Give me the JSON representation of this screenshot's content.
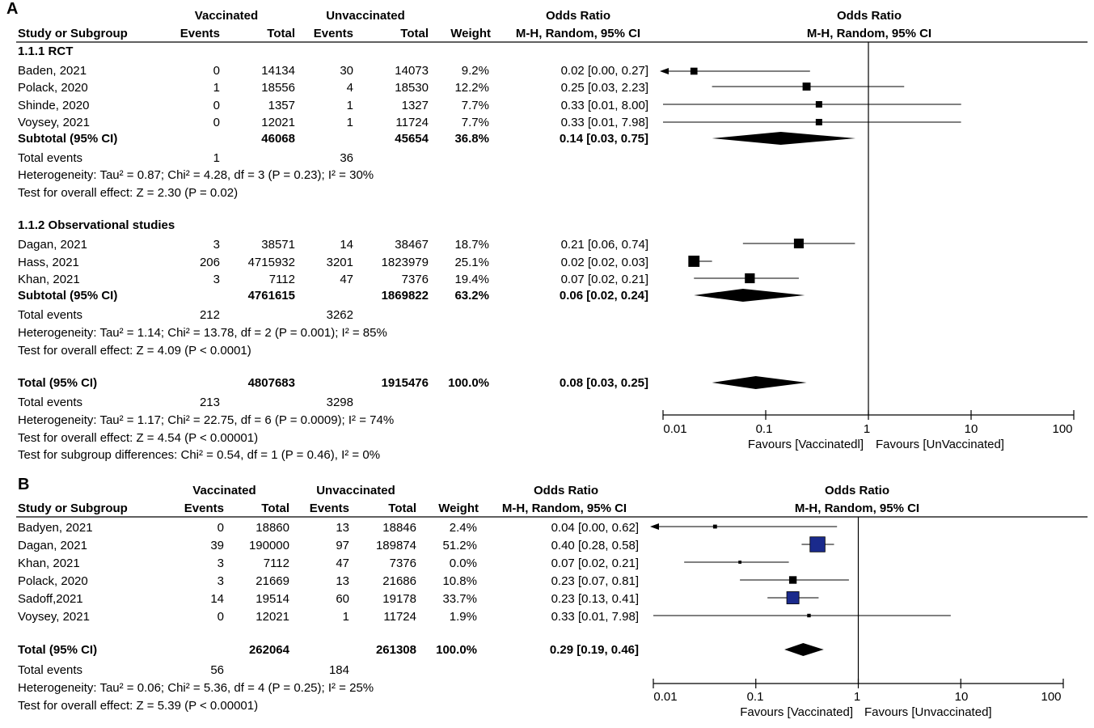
{
  "panels": [
    {
      "label": "A",
      "headers": {
        "group1": "Vaccinated",
        "group2": "Unvaccinated",
        "or_title": "Odds Ratio",
        "study": "Study or Subgroup",
        "events": "Events",
        "total": "Total",
        "weight": "Weight",
        "method": "M-H, Random, 95% CI",
        "plot_title": "Odds Ratio",
        "plot_method": "M-H, Random, 95% CI"
      },
      "subgroups": [
        {
          "title": "1.1.1 RCT",
          "studies": [
            {
              "name": "Baden, 2021",
              "ev1": "0",
              "tot1": "14134",
              "ev2": "30",
              "tot2": "14073",
              "weight": "9.2%",
              "ci": "0.02 [0.00, 0.27]"
            },
            {
              "name": "Polack, 2020",
              "ev1": "1",
              "tot1": "18556",
              "ev2": "4",
              "tot2": "18530",
              "weight": "12.2%",
              "ci": "0.25 [0.03, 2.23]"
            },
            {
              "name": "Shinde, 2020",
              "ev1": "0",
              "tot1": "1357",
              "ev2": "1",
              "tot2": "1327",
              "weight": "7.7%",
              "ci": "0.33 [0.01, 8.00]"
            },
            {
              "name": "Voysey, 2021",
              "ev1": "0",
              "tot1": "12021",
              "ev2": "1",
              "tot2": "11724",
              "weight": "7.7%",
              "ci": "0.33 [0.01, 7.98]"
            }
          ],
          "subtotal": {
            "label": "Subtotal (95% CI)",
            "tot1": "46068",
            "tot2": "45654",
            "weight": "36.8%",
            "ci": "0.14 [0.03, 0.75]"
          },
          "total_events": {
            "label": "Total events",
            "ev1": "1",
            "ev2": "36"
          },
          "heterogeneity": "Heterogeneity: Tau² = 0.87; Chi² = 4.28, df = 3 (P = 0.23); I² = 30%",
          "overall": "Test for overall effect: Z = 2.30 (P = 0.02)"
        },
        {
          "title": "1.1.2 Observational studies",
          "studies": [
            {
              "name": "Dagan, 2021",
              "ev1": "3",
              "tot1": "38571",
              "ev2": "14",
              "tot2": "38467",
              "weight": "18.7%",
              "ci": "0.21 [0.06, 0.74]"
            },
            {
              "name": "Hass, 2021",
              "ev1": "206",
              "tot1": "4715932",
              "ev2": "3201",
              "tot2": "1823979",
              "weight": "25.1%",
              "ci": "0.02 [0.02, 0.03]"
            },
            {
              "name": "Khan, 2021",
              "ev1": "3",
              "tot1": "7112",
              "ev2": "47",
              "tot2": "7376",
              "weight": "19.4%",
              "ci": "0.07 [0.02, 0.21]"
            }
          ],
          "subtotal": {
            "label": "Subtotal (95% CI)",
            "tot1": "4761615",
            "tot2": "1869822",
            "weight": "63.2%",
            "ci": "0.06 [0.02, 0.24]"
          },
          "total_events": {
            "label": "Total events",
            "ev1": "212",
            "ev2": "3262"
          },
          "heterogeneity": "Heterogeneity: Tau² = 1.14; Chi² = 13.78, df = 2 (P = 0.001); I² = 85%",
          "overall": "Test for overall effect: Z = 4.09 (P < 0.0001)"
        }
      ],
      "total": {
        "label": "Total (95% CI)",
        "tot1": "4807683",
        "tot2": "1915476",
        "weight": "100.0%",
        "ci": "0.08 [0.03, 0.25]"
      },
      "total_events": {
        "label": "Total events",
        "ev1": "213",
        "ev2": "3298"
      },
      "heterogeneity": "Heterogeneity: Tau² = 1.17; Chi² = 22.75, df = 6 (P = 0.0009); I² = 74%",
      "overall": "Test for overall effect: Z = 4.54 (P < 0.00001)",
      "subgroup_test": "Test for subgroup differences: Chi² = 0.54, df = 1 (P = 0.46), I² = 0%",
      "axis_ticks": [
        "0.01",
        "0.1",
        "1",
        "10",
        "100"
      ],
      "favours_left": "Favours [Vaccinatedl]",
      "favours_right": "Favours [UnVaccinated]"
    },
    {
      "label": "B",
      "headers": {
        "group1": "Vaccinated",
        "group2": "Unvaccinated",
        "or_title": "Odds Ratio",
        "study": "Study or Subgroup",
        "events": "Events",
        "total": "Total",
        "weight": "Weight",
        "method": "M-H, Random, 95% CI",
        "plot_title": "Odds Ratio",
        "plot_method": "M-H, Random, 95% CI"
      },
      "studies": [
        {
          "name": "Badyen, 2021",
          "ev1": "0",
          "tot1": "18860",
          "ev2": "13",
          "tot2": "18846",
          "weight": "2.4%",
          "ci": "0.04 [0.00, 0.62]"
        },
        {
          "name": "Dagan, 2021",
          "ev1": "39",
          "tot1": "190000",
          "ev2": "97",
          "tot2": "189874",
          "weight": "51.2%",
          "ci": "0.40 [0.28, 0.58]"
        },
        {
          "name": "Khan, 2021",
          "ev1": "3",
          "tot1": "7112",
          "ev2": "47",
          "tot2": "7376",
          "weight": "0.0%",
          "ci": "0.07 [0.02, 0.21]"
        },
        {
          "name": "Polack, 2020",
          "ev1": "3",
          "tot1": "21669",
          "ev2": "13",
          "tot2": "21686",
          "weight": "10.8%",
          "ci": "0.23 [0.07, 0.81]"
        },
        {
          "name": "Sadoff,2021",
          "ev1": "14",
          "tot1": "19514",
          "ev2": "60",
          "tot2": "19178",
          "weight": "33.7%",
          "ci": "0.23 [0.13, 0.41]"
        },
        {
          "name": "Voysey, 2021",
          "ev1": "0",
          "tot1": "12021",
          "ev2": "1",
          "tot2": "11724",
          "weight": "1.9%",
          "ci": "0.33 [0.01, 7.98]"
        }
      ],
      "total": {
        "label": "Total (95% CI)",
        "tot1": "262064",
        "tot2": "261308",
        "weight": "100.0%",
        "ci": "0.29 [0.19, 0.46]"
      },
      "total_events": {
        "label": "Total events",
        "ev1": "56",
        "ev2": "184"
      },
      "heterogeneity": "Heterogeneity: Tau² = 0.06; Chi² = 5.36, df = 4 (P = 0.25); I² = 25%",
      "overall": "Test for overall effect: Z = 5.39 (P < 0.00001)",
      "axis_ticks": [
        "0.01",
        "0.1",
        "1",
        "10",
        "100"
      ],
      "favours_left": "Favours [Vaccinated]",
      "favours_right": "Favours [Unvaccinated]"
    }
  ],
  "chart_data": [
    {
      "type": "forest",
      "title": "A",
      "scale": "log",
      "xlim": [
        0.01,
        100
      ],
      "xticks": [
        0.01,
        0.1,
        1,
        10,
        100
      ],
      "points": [
        {
          "name": "Baden, 2021",
          "or": 0.02,
          "lo": 0.0,
          "hi": 0.27,
          "weight": 9.2,
          "kind": "study"
        },
        {
          "name": "Polack, 2020",
          "or": 0.25,
          "lo": 0.03,
          "hi": 2.23,
          "weight": 12.2,
          "kind": "study"
        },
        {
          "name": "Shinde, 2020",
          "or": 0.33,
          "lo": 0.01,
          "hi": 8.0,
          "weight": 7.7,
          "kind": "study"
        },
        {
          "name": "Voysey, 2021",
          "or": 0.33,
          "lo": 0.01,
          "hi": 7.98,
          "weight": 7.7,
          "kind": "study"
        },
        {
          "name": "Subtotal RCT",
          "or": 0.14,
          "lo": 0.03,
          "hi": 0.75,
          "weight": 36.8,
          "kind": "diamond"
        },
        {
          "name": "Dagan, 2021",
          "or": 0.21,
          "lo": 0.06,
          "hi": 0.74,
          "weight": 18.7,
          "kind": "study"
        },
        {
          "name": "Hass, 2021",
          "or": 0.02,
          "lo": 0.02,
          "hi": 0.03,
          "weight": 25.1,
          "kind": "study"
        },
        {
          "name": "Khan, 2021",
          "or": 0.07,
          "lo": 0.02,
          "hi": 0.21,
          "weight": 19.4,
          "kind": "study"
        },
        {
          "name": "Subtotal Observational",
          "or": 0.06,
          "lo": 0.02,
          "hi": 0.24,
          "weight": 63.2,
          "kind": "diamond"
        },
        {
          "name": "Total",
          "or": 0.08,
          "lo": 0.03,
          "hi": 0.25,
          "weight": 100.0,
          "kind": "diamond"
        }
      ]
    },
    {
      "type": "forest",
      "title": "B",
      "scale": "log",
      "xlim": [
        0.01,
        100
      ],
      "xticks": [
        0.01,
        0.1,
        1,
        10,
        100
      ],
      "points": [
        {
          "name": "Badyen, 2021",
          "or": 0.04,
          "lo": 0.0,
          "hi": 0.62,
          "weight": 2.4,
          "kind": "study"
        },
        {
          "name": "Dagan, 2021",
          "or": 0.4,
          "lo": 0.28,
          "hi": 0.58,
          "weight": 51.2,
          "kind": "study"
        },
        {
          "name": "Khan, 2021",
          "or": 0.07,
          "lo": 0.02,
          "hi": 0.21,
          "weight": 0.0,
          "kind": "study"
        },
        {
          "name": "Polack, 2020",
          "or": 0.23,
          "lo": 0.07,
          "hi": 0.81,
          "weight": 10.8,
          "kind": "study"
        },
        {
          "name": "Sadoff,2021",
          "or": 0.23,
          "lo": 0.13,
          "hi": 0.41,
          "weight": 33.7,
          "kind": "study"
        },
        {
          "name": "Voysey, 2021",
          "or": 0.33,
          "lo": 0.01,
          "hi": 7.98,
          "weight": 1.9,
          "kind": "study"
        },
        {
          "name": "Total",
          "or": 0.29,
          "lo": 0.19,
          "hi": 0.46,
          "weight": 100.0,
          "kind": "diamond"
        }
      ]
    }
  ]
}
